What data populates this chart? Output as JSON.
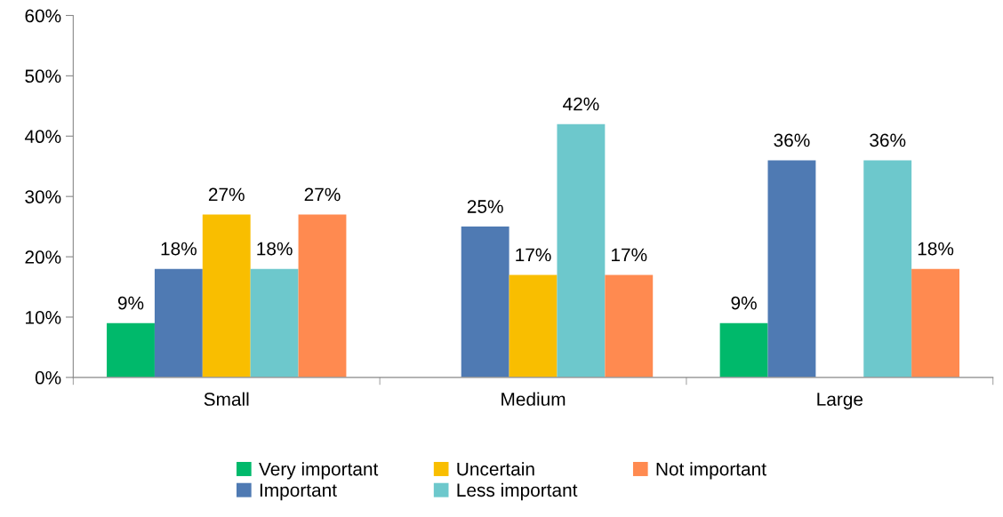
{
  "chart_data": {
    "type": "bar",
    "categories": [
      "Small",
      "Medium",
      "Large"
    ],
    "series": [
      {
        "name": "Very important",
        "color": "#00b96b",
        "values": [
          9,
          null,
          9
        ],
        "value_labels": [
          "9%",
          null,
          "9%"
        ]
      },
      {
        "name": "Important",
        "color": "#4f7ab3",
        "values": [
          18,
          25,
          36
        ],
        "value_labels": [
          "18%",
          "25%",
          "36%"
        ]
      },
      {
        "name": "Uncertain",
        "color": "#f9be00",
        "values": [
          27,
          17,
          null
        ],
        "value_labels": [
          "27%",
          "17%",
          null
        ]
      },
      {
        "name": "Less important",
        "color": "#6dc8cc",
        "values": [
          18,
          42,
          36
        ],
        "value_labels": [
          "18%",
          "42%",
          "36%"
        ]
      },
      {
        "name": "Not important",
        "color": "#ff8a50",
        "values": [
          27,
          17,
          18
        ],
        "value_labels": [
          "27%",
          "17%",
          "18%"
        ]
      }
    ],
    "ylim": [
      0,
      60
    ],
    "yticks": [
      {
        "value": 0,
        "label": "0%"
      },
      {
        "value": 10,
        "label": "10%"
      },
      {
        "value": 20,
        "label": "20%"
      },
      {
        "value": 30,
        "label": "30%"
      },
      {
        "value": 40,
        "label": "40%"
      },
      {
        "value": 50,
        "label": "50%"
      },
      {
        "value": 60,
        "label": "60%"
      }
    ],
    "grid": false,
    "legend": "bottom"
  }
}
